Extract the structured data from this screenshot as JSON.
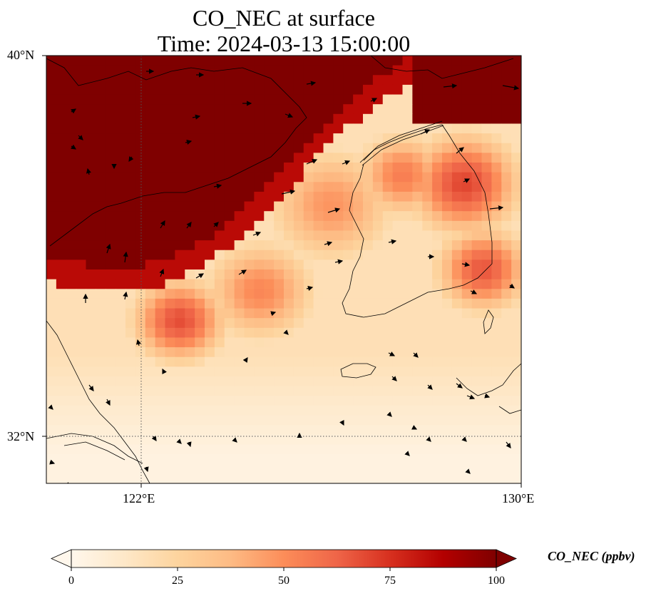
{
  "title": {
    "line1": "CO_NEC at surface",
    "line2": "Time: 2024-03-13 15:00:00"
  },
  "axes": {
    "lat_ticks": [
      "40°N",
      "32°N"
    ],
    "lon_ticks": [
      "122°E",
      "130°E"
    ],
    "lat_range": [
      31,
      40
    ],
    "lon_range": [
      120,
      130
    ],
    "gridlines": "dotted at 122°E and 32°N"
  },
  "colorbar": {
    "label": "CO_NEC (ppbv)",
    "ticks": [
      "0",
      "25",
      "50",
      "75",
      "100"
    ],
    "range": [
      0,
      100
    ],
    "extend": "both",
    "colormap": "OrRd",
    "colors": [
      "#fff7ec",
      "#fee8c8",
      "#fdd49e",
      "#fdbb84",
      "#fc8d59",
      "#ef6548",
      "#d7301f",
      "#b30000",
      "#7f0000"
    ]
  },
  "chart_data": {
    "type": "heatmap",
    "variable": "CO_NEC",
    "units": "ppbv",
    "level": "surface",
    "time": "2024-03-13 15:00:00",
    "field_note": "saturated (>100 ppbv) over Bohai / Liaodong region north of ~37.5°N and the northern Korean peninsula; secondary maximum ~60-70 ppbv near 33.5°N 122.5°E and along eastern Korea; low values (<20 ppbv) in the southwest near 31-32°N",
    "wind_vectors": "shown as black arrows, mostly westerly to northwesterly"
  }
}
